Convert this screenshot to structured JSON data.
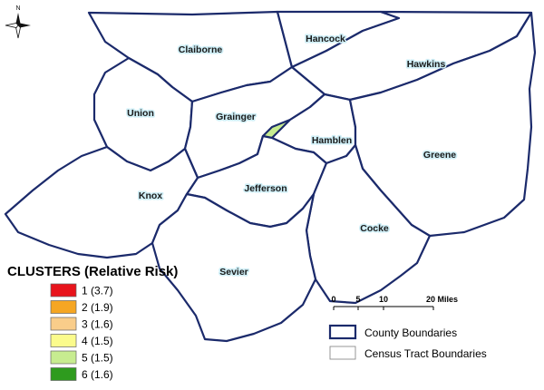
{
  "north_label": "N",
  "counties": [
    {
      "name": "Claiborne"
    },
    {
      "name": "Hancock"
    },
    {
      "name": "Hawkins"
    },
    {
      "name": "Union"
    },
    {
      "name": "Grainger"
    },
    {
      "name": "Hamblen"
    },
    {
      "name": "Greene"
    },
    {
      "name": "Jefferson"
    },
    {
      "name": "Knox"
    },
    {
      "name": "Cocke"
    },
    {
      "name": "Sevier"
    }
  ],
  "clusters_legend": {
    "title": "CLUSTERS (Relative Risk)",
    "items": [
      {
        "label": "1 (3.7)",
        "color": "#e8141c"
      },
      {
        "label": "2 (1.9)",
        "color": "#f5a623"
      },
      {
        "label": "3 (1.6)",
        "color": "#f9cd8a"
      },
      {
        "label": "4 (1.5)",
        "color": "#fbfb8c"
      },
      {
        "label": "5 (1.5)",
        "color": "#c7ec90"
      },
      {
        "label": "6 (1.6)",
        "color": "#2e9b1e"
      }
    ]
  },
  "scale_bar": {
    "ticks": [
      "0",
      "5",
      "10",
      "20 Miles"
    ]
  },
  "boundaries_legend": [
    {
      "label": "County Boundaries",
      "color": "#1b2a6b"
    },
    {
      "label": "Census Tract Boundaries",
      "color": "#8c8c8c"
    }
  ]
}
